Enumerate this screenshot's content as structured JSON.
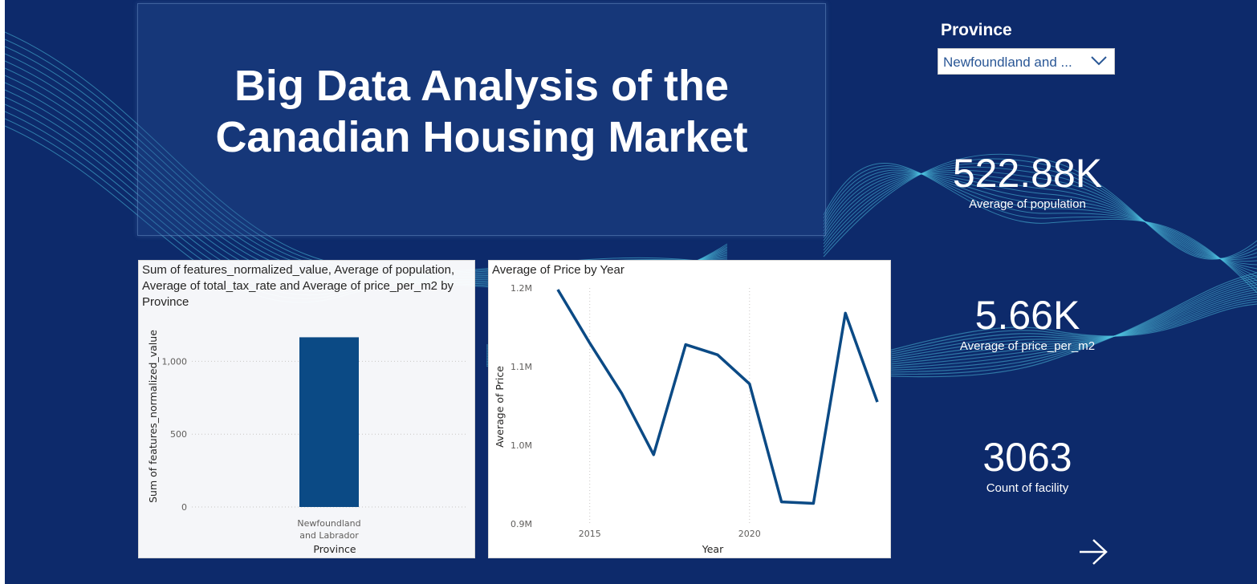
{
  "title": "Big Data Analysis of the\nCanadian Housing Market",
  "slicer": {
    "label": "Province",
    "selected": "Newfoundland and ...",
    "icon": "chevron-down-icon"
  },
  "kpis": [
    {
      "value": "522.88K",
      "label": "Average of population"
    },
    {
      "value": "5.66K",
      "label": "Average of price_per_m2"
    },
    {
      "value": "3063",
      "label": "Count of facility"
    }
  ],
  "next_icon": "arrow-right-icon",
  "colors": {
    "background": "#0d2a6b",
    "series": "#0b4a85",
    "wave": "#4fc3e0"
  },
  "chart_data": [
    {
      "type": "bar",
      "title": "Sum of features_normalized_value, Average of population, Average of total_tax_rate and Average of price_per_m2 by Province",
      "categories": [
        "Newfoundland and Labrador"
      ],
      "series": [
        {
          "values": [
            1165
          ]
        }
      ],
      "xlabel": "Province",
      "ylabel": "Sum of features_normalized_value",
      "ylim": [
        0,
        1250
      ],
      "yticks": [
        0,
        500,
        1000
      ],
      "ytick_labels": [
        "0",
        "500",
        "1,000"
      ],
      "grid": true
    },
    {
      "type": "line",
      "title": "Average of Price by Year",
      "x": [
        2014,
        2015,
        2016,
        2017,
        2018,
        2019,
        2020,
        2021,
        2022,
        2023,
        2024
      ],
      "series": [
        {
          "values": [
            1.198,
            1.13,
            1.066,
            0.988,
            1.128,
            1.115,
            1.078,
            0.928,
            0.926,
            1.168,
            1.055
          ]
        }
      ],
      "xlabel": "Year",
      "ylabel": "Average of Price",
      "xlim": [
        2013.5,
        2024.2
      ],
      "ylim": [
        0.9,
        1.2
      ],
      "xticks": [
        2015,
        2020
      ],
      "yticks": [
        0.9,
        1.0,
        1.1,
        1.2
      ],
      "ytick_labels": [
        "0.9M",
        "1.0M",
        "1.1M",
        "1.2M"
      ],
      "grid": true
    }
  ]
}
